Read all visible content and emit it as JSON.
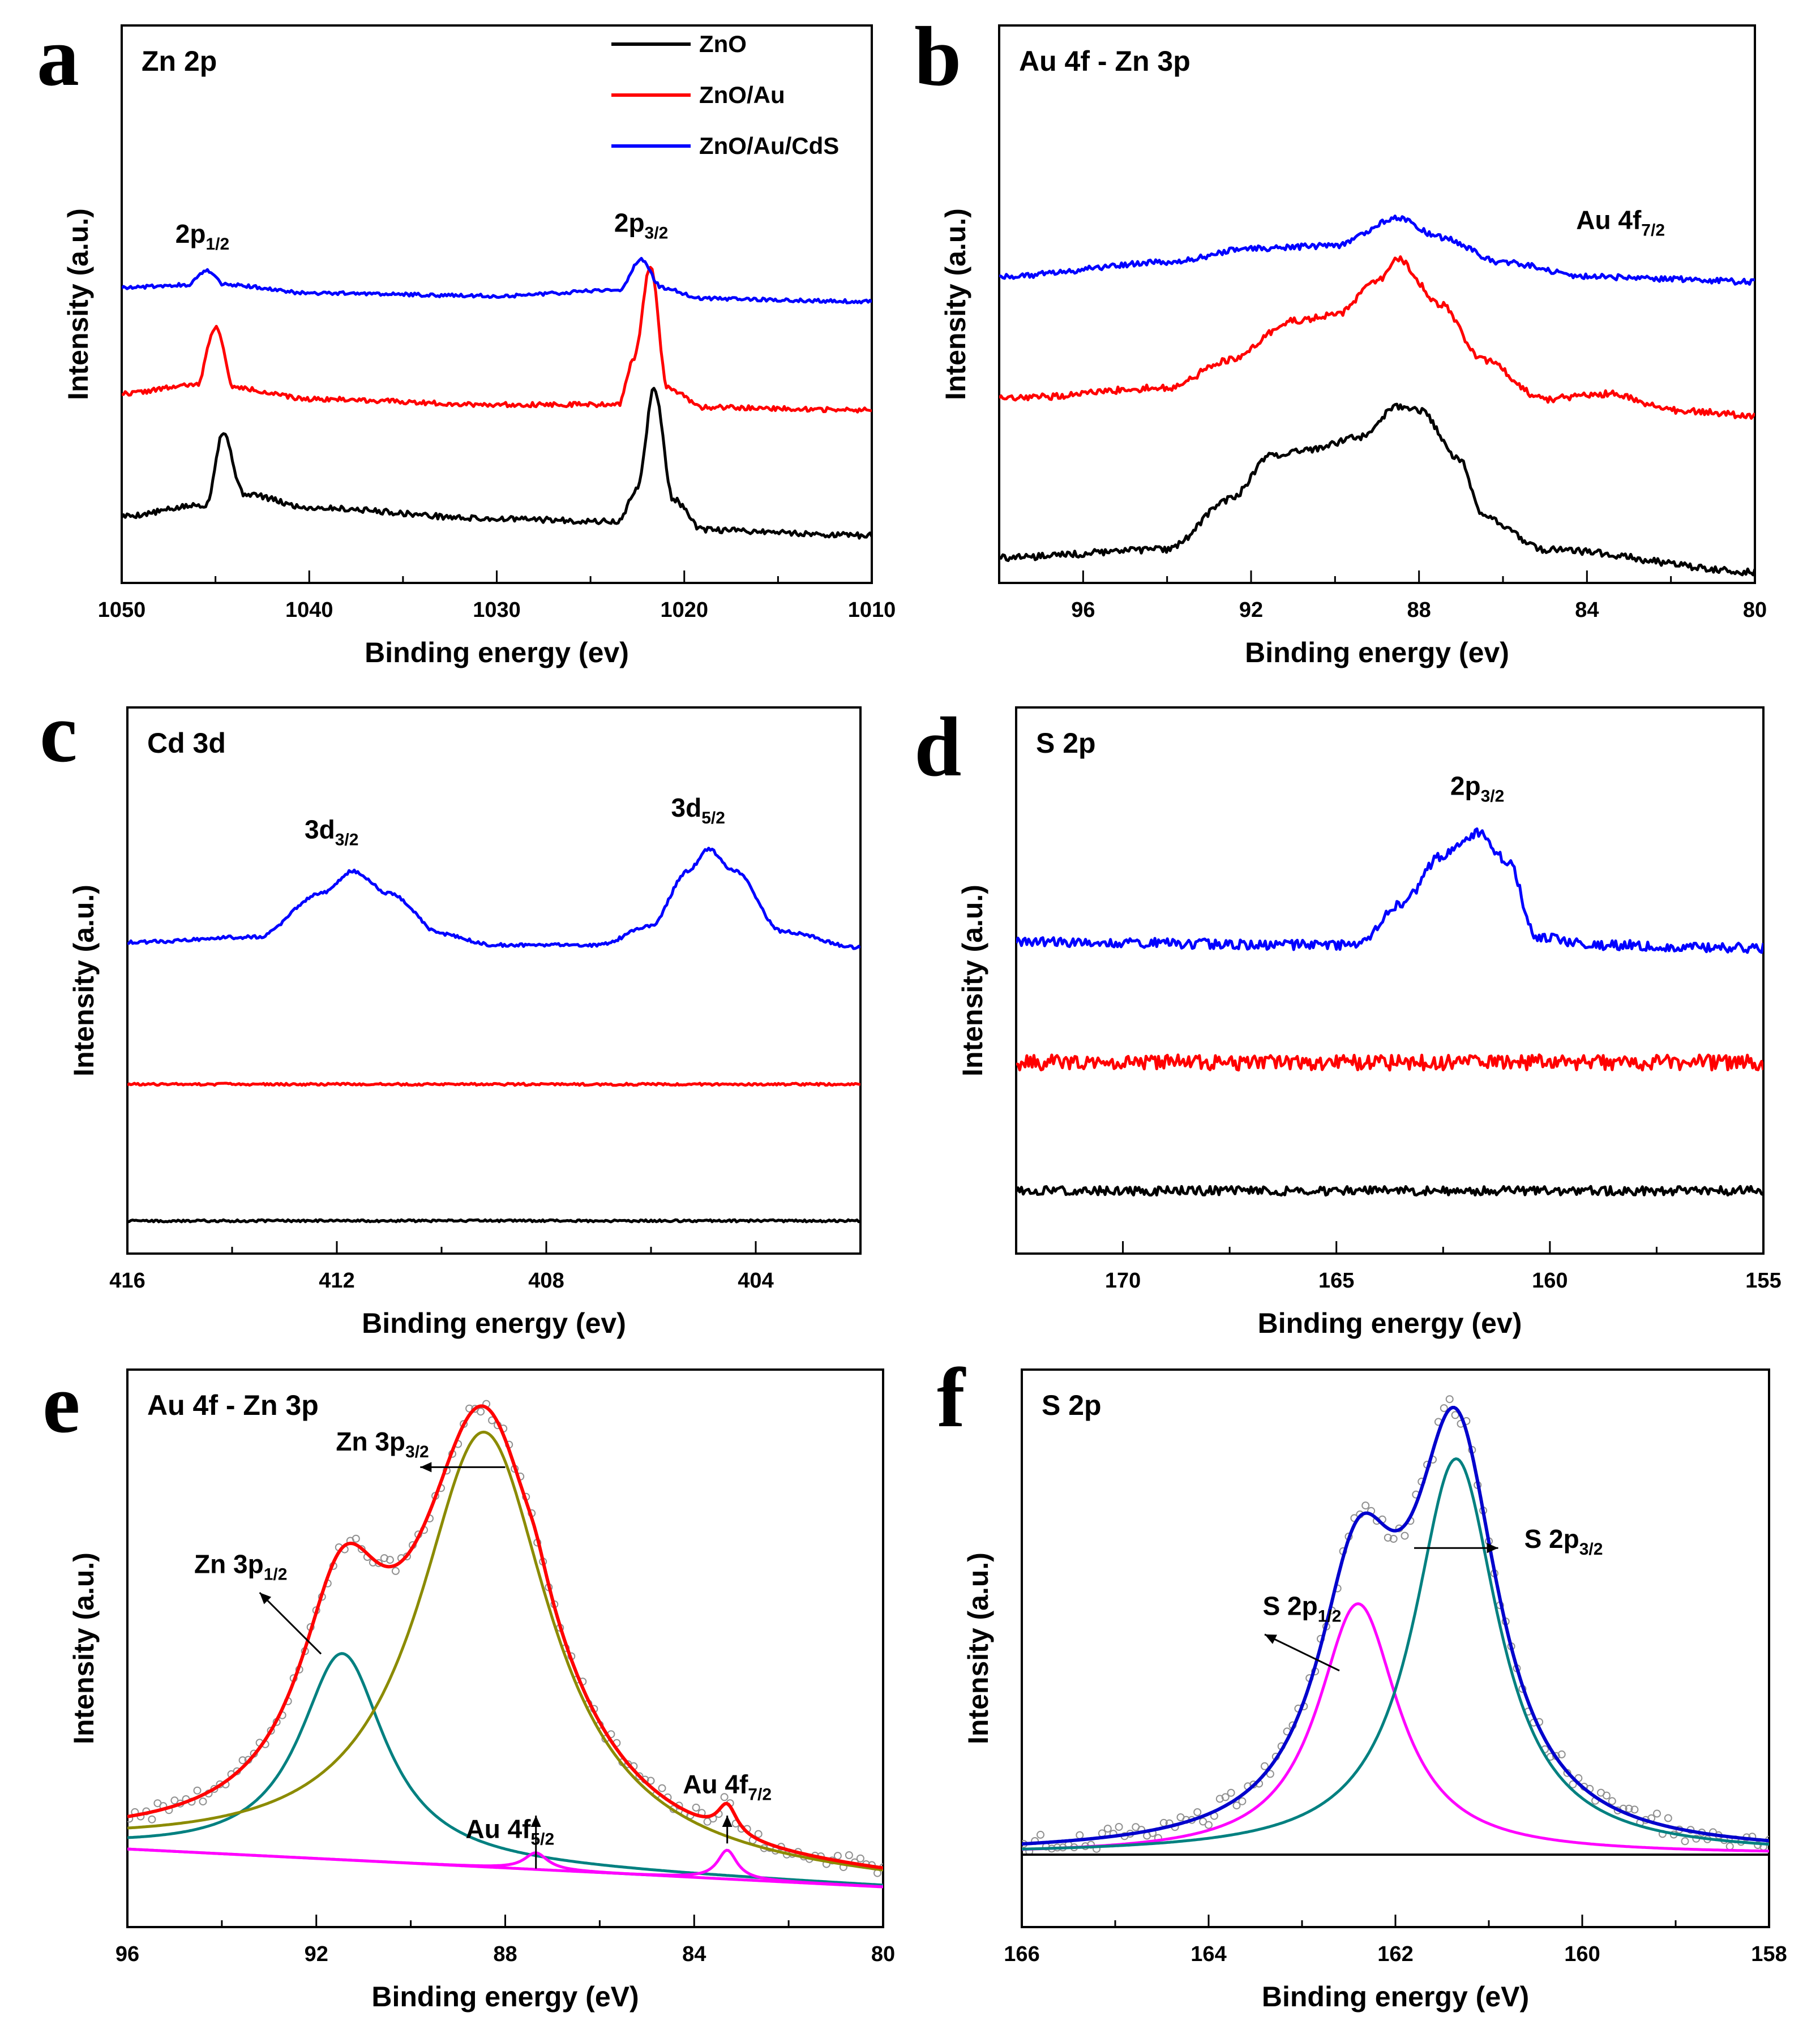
{
  "chart_data": [
    {
      "type": "line",
      "panel": "a",
      "title": "Zn 2p",
      "xlabel": "Binding energy (ev)",
      "ylabel": "Intensity (a.u.)",
      "xlim": [
        1050,
        1010
      ],
      "ylim": [
        0,
        10
      ],
      "xticks": [
        "1050",
        "1040",
        "1030",
        "1020",
        "1010"
      ],
      "legend": {
        "position": "top-right",
        "entries": [
          "ZnO",
          "ZnO/Au",
          "ZnO/Au/CdS"
        ]
      },
      "series": [
        {
          "name": "ZnO",
          "color": "#000000",
          "noise": 0.05,
          "points": [
            [
              1050,
              1.2
            ],
            [
              1045.5,
              1.4
            ],
            [
              1044.6,
              2.7
            ],
            [
              1043.5,
              1.6
            ],
            [
              1040,
              1.35
            ],
            [
              1030,
              1.15
            ],
            [
              1023.5,
              1.1
            ],
            [
              1022.5,
              1.7
            ],
            [
              1021.6,
              3.5
            ],
            [
              1020.6,
              1.5
            ],
            [
              1019,
              0.95
            ],
            [
              1010,
              0.85
            ]
          ]
        },
        {
          "name": "ZnO/Au",
          "color": "#ff0000",
          "noise": 0.04,
          "points": [
            [
              1050,
              3.4
            ],
            [
              1046,
              3.55
            ],
            [
              1045,
              4.6
            ],
            [
              1044,
              3.5
            ],
            [
              1040,
              3.3
            ],
            [
              1030,
              3.2
            ],
            [
              1023.5,
              3.2
            ],
            [
              1022.7,
              4.0
            ],
            [
              1021.8,
              5.7
            ],
            [
              1020.9,
              3.5
            ],
            [
              1019,
              3.15
            ],
            [
              1010,
              3.1
            ]
          ]
        },
        {
          "name": "ZnO/Au/CdS",
          "color": "#0000ff",
          "noise": 0.03,
          "points": [
            [
              1050,
              5.3
            ],
            [
              1046.5,
              5.35
            ],
            [
              1045.5,
              5.6
            ],
            [
              1044.5,
              5.35
            ],
            [
              1040,
              5.2
            ],
            [
              1030,
              5.15
            ],
            [
              1023.5,
              5.25
            ],
            [
              1022.3,
              5.8
            ],
            [
              1021.2,
              5.3
            ],
            [
              1019,
              5.1
            ],
            [
              1010,
              5.05
            ]
          ]
        }
      ],
      "annotations": [
        {
          "base": "2p",
          "sub": "1/2",
          "x": 1045.7,
          "y": 6.1
        },
        {
          "base": "2p",
          "sub": "3/2",
          "x": 1022.3,
          "y": 6.3
        }
      ]
    },
    {
      "type": "line",
      "panel": "b",
      "title": "Au 4f - Zn 3p",
      "xlabel": "Binding energy (ev)",
      "ylabel": "Intensity (a.u.)",
      "xlim": [
        98,
        80
      ],
      "ylim": [
        0,
        10
      ],
      "xticks": [
        "96",
        "92",
        "88",
        "84",
        "80"
      ],
      "series": [
        {
          "name": "ZnO",
          "color": "#000000",
          "noise": 0.06,
          "points": [
            [
              98,
              0.45
            ],
            [
              94,
              0.6
            ],
            [
              92.5,
              1.5
            ],
            [
              91.5,
              2.3
            ],
            [
              90.5,
              2.4
            ],
            [
              89.5,
              2.6
            ],
            [
              88.5,
              3.15
            ],
            [
              88,
              3.1
            ],
            [
              87,
              2.2
            ],
            [
              86.5,
              1.2
            ],
            [
              85,
              0.6
            ],
            [
              80,
              0.2
            ]
          ]
        },
        {
          "name": "ZnO/Au",
          "color": "#ff0000",
          "noise": 0.06,
          "points": [
            [
              98,
              3.3
            ],
            [
              94,
              3.5
            ],
            [
              92.5,
              4.0
            ],
            [
              91,
              4.7
            ],
            [
              90,
              4.8
            ],
            [
              89,
              5.4
            ],
            [
              88.5,
              5.8
            ],
            [
              87.5,
              5.0
            ],
            [
              86.5,
              4.0
            ],
            [
              85,
              3.3
            ],
            [
              83.4,
              3.4
            ],
            [
              82,
              3.1
            ],
            [
              80,
              3.0
            ]
          ]
        },
        {
          "name": "ZnO/Au/CdS",
          "color": "#0000ff",
          "noise": 0.05,
          "points": [
            [
              98,
              5.5
            ],
            [
              94,
              5.75
            ],
            [
              92,
              6.0
            ],
            [
              90,
              6.05
            ],
            [
              88.5,
              6.55
            ],
            [
              87.5,
              6.2
            ],
            [
              86,
              5.75
            ],
            [
              84,
              5.5
            ],
            [
              82,
              5.45
            ],
            [
              80,
              5.4
            ]
          ]
        }
      ],
      "annotations": [
        {
          "base": "Au 4f",
          "sub": "7/2",
          "x": 83.2,
          "y": 6.35
        }
      ]
    },
    {
      "type": "line",
      "panel": "c",
      "title": "Cd 3d",
      "xlabel": "Binding energy (ev)",
      "ylabel": "Intensity (a.u.)",
      "xlim": [
        416,
        402
      ],
      "ylim": [
        0,
        10
      ],
      "xticks": [
        "416",
        "412",
        "408",
        "404"
      ],
      "series": [
        {
          "name": "ZnO",
          "color": "#000000",
          "noise": 0.02,
          "points": [
            [
              416,
              0.6
            ],
            [
              402,
              0.6
            ]
          ]
        },
        {
          "name": "ZnO/Au",
          "color": "#ff0000",
          "noise": 0.02,
          "points": [
            [
              416,
              3.1
            ],
            [
              402,
              3.1
            ]
          ]
        },
        {
          "name": "ZnO/Au/CdS",
          "color": "#0000ff",
          "noise": 0.03,
          "points": [
            [
              416,
              5.7
            ],
            [
              413.5,
              5.8
            ],
            [
              412.3,
              6.6
            ],
            [
              411.7,
              7.0
            ],
            [
              411,
              6.6
            ],
            [
              410,
              5.85
            ],
            [
              409,
              5.65
            ],
            [
              407,
              5.65
            ],
            [
              406,
              6.0
            ],
            [
              405.3,
              7.0
            ],
            [
              404.9,
              7.4
            ],
            [
              404.4,
              7.0
            ],
            [
              403.5,
              5.9
            ],
            [
              402,
              5.6
            ]
          ]
        }
      ],
      "annotations": [
        {
          "base": "3d",
          "sub": "3/2",
          "x": 412.1,
          "y": 7.6
        },
        {
          "base": "3d",
          "sub": "5/2",
          "x": 405.1,
          "y": 8.0
        }
      ]
    },
    {
      "type": "line",
      "panel": "d",
      "title": "S 2p",
      "xlabel": "Binding energy (ev)",
      "ylabel": "Intensity (a.u.)",
      "xlim": [
        172.5,
        155
      ],
      "ylim": [
        0,
        10
      ],
      "xticks": [
        "170",
        "165",
        "160",
        "155"
      ],
      "series": [
        {
          "name": "ZnO",
          "color": "#000000",
          "noise": 0.08,
          "points": [
            [
              172.5,
              1.15
            ],
            [
              155,
              1.15
            ]
          ]
        },
        {
          "name": "ZnO/Au",
          "color": "#ff0000",
          "noise": 0.14,
          "points": [
            [
              172.5,
              3.5
            ],
            [
              155,
              3.5
            ]
          ]
        },
        {
          "name": "ZnO/Au/CdS",
          "color": "#0000ff",
          "noise": 0.09,
          "points": [
            [
              172.5,
              5.7
            ],
            [
              164.5,
              5.65
            ],
            [
              163.5,
              6.4
            ],
            [
              162.5,
              7.3
            ],
            [
              161.7,
              7.7
            ],
            [
              161.0,
              7.2
            ],
            [
              160.3,
              5.8
            ],
            [
              159,
              5.65
            ],
            [
              155,
              5.6
            ]
          ]
        }
      ],
      "annotations": [
        {
          "base": "2p",
          "sub": "3/2",
          "x": 161.7,
          "y": 8.4
        }
      ]
    },
    {
      "type": "line",
      "panel": "e",
      "title": "Au 4f - Zn 3p",
      "xlabel": "Binding energy (eV)",
      "ylabel": "Intensity (a.u.)",
      "xlim": [
        96,
        80
      ],
      "ylim": [
        0,
        10
      ],
      "xticks": [
        "96",
        "92",
        "88",
        "84",
        "80"
      ],
      "baseline": {
        "x": [
          96,
          80
        ],
        "y": [
          1.4,
          0.72
        ]
      },
      "scatter": {
        "name": "data points",
        "color": "#909090",
        "noise": 0.14,
        "follows": "Sum fit",
        "step": 0.12
      },
      "series": [
        {
          "name": "Zn 3p1/2 component",
          "color": "#008080",
          "kind": "lorentz",
          "center": 91.45,
          "height": 3.7,
          "width": 2.2
        },
        {
          "name": "Zn 3p3/2 component",
          "color": "#8b8b00",
          "kind": "lorentz",
          "center": 88.45,
          "height": 7.8,
          "width": 3.4
        },
        {
          "name": "Au 4f5/2 component",
          "color": "#ff00ff",
          "kind": "lorentz",
          "center": 87.35,
          "height": 0.3,
          "width": 0.6
        },
        {
          "name": "Au 4f7/2 component",
          "color": "#ff00ff",
          "kind": "lorentz",
          "center": 83.3,
          "height": 0.52,
          "width": 0.5
        },
        {
          "name": "Background",
          "color": "#2020a0",
          "kind": "baseline"
        },
        {
          "name": "Sum fit",
          "color": "#ff0000",
          "kind": "sum"
        }
      ],
      "annotations": [
        {
          "base": "Zn 3p",
          "sub": "3/2",
          "x": 90.6,
          "y": 8.55
        },
        {
          "base": "Zn 3p",
          "sub": "1/2",
          "x": 93.6,
          "y": 6.35
        },
        {
          "base": "Au 4f",
          "sub": "5/2",
          "x": 87.9,
          "y": 1.6
        },
        {
          "base": "Au 4f",
          "sub": "7/2",
          "x": 83.3,
          "y": 2.4
        }
      ]
    },
    {
      "type": "line",
      "panel": "f",
      "title": "S 2p",
      "xlabel": "Binding energy (eV)",
      "ylabel": "Intensity (a.u.)",
      "xlim": [
        166,
        158
      ],
      "ylim": [
        0,
        10
      ],
      "xticks": [
        "166",
        "164",
        "162",
        "160",
        "158"
      ],
      "baseline": {
        "x": [
          166,
          158
        ],
        "y": [
          1.3,
          1.3
        ]
      },
      "scatter": {
        "name": "data points",
        "color": "#909090",
        "noise": 0.2,
        "follows": "Sum fit",
        "step": 0.06
      },
      "series": [
        {
          "name": "S 2p1/2 component",
          "color": "#ff00ff",
          "kind": "lorentz",
          "center": 162.4,
          "height": 4.5,
          "width": 1.05
        },
        {
          "name": "S 2p3/2 component",
          "color": "#008080",
          "kind": "lorentz",
          "center": 161.35,
          "height": 7.1,
          "width": 1.1
        },
        {
          "name": "Background",
          "color": "#000000",
          "kind": "baseline"
        },
        {
          "name": "Sum fit",
          "color": "#0000cc",
          "kind": "sum"
        }
      ],
      "annotations": [
        {
          "base": "S 2p",
          "sub": "3/2",
          "x": 160.2,
          "y": 6.8
        },
        {
          "base": "S 2p",
          "sub": "1/2",
          "x": 163.0,
          "y": 5.6
        }
      ]
    }
  ]
}
